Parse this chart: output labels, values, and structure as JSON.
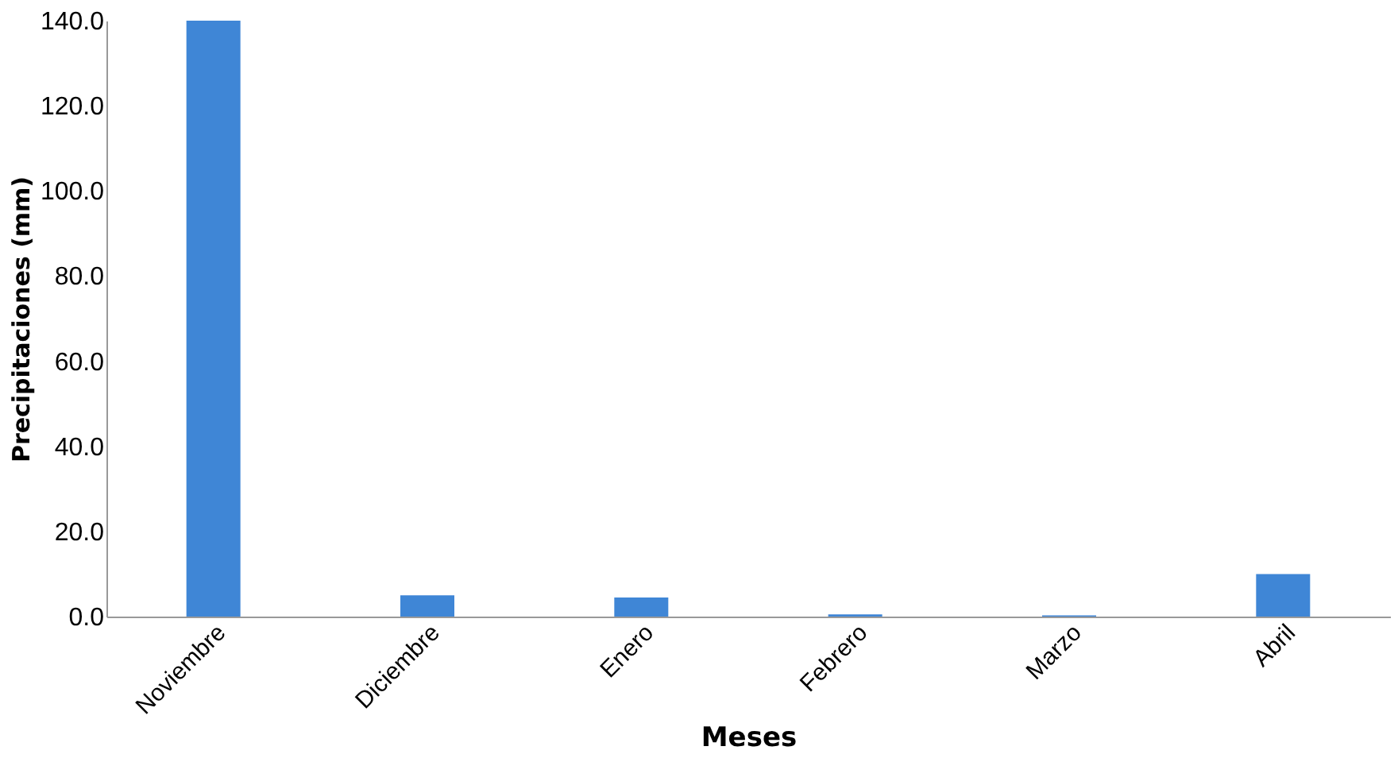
{
  "chart_data": {
    "type": "bar",
    "xlabel": "Meses",
    "ylabel": "Precipitaciones (mm)",
    "categories": [
      "Noviembre",
      "Diciembre",
      "Enero",
      "Febrero",
      "Marzo",
      "Abril"
    ],
    "values": [
      140,
      5,
      4.5,
      0.5,
      0.3,
      10
    ],
    "color": "#3f86d6",
    "ylim": [
      0,
      140
    ],
    "yticks": [
      {
        "value": 0,
        "label": "0.0"
      },
      {
        "value": 20,
        "label": "20.0"
      },
      {
        "value": 40,
        "label": "40.0"
      },
      {
        "value": 60,
        "label": "60.0"
      },
      {
        "value": 80,
        "label": "80.0"
      },
      {
        "value": 100,
        "label": "100.0"
      },
      {
        "value": 120,
        "label": "120.0"
      },
      {
        "value": 140,
        "label": "140.0"
      }
    ],
    "grid": false
  }
}
